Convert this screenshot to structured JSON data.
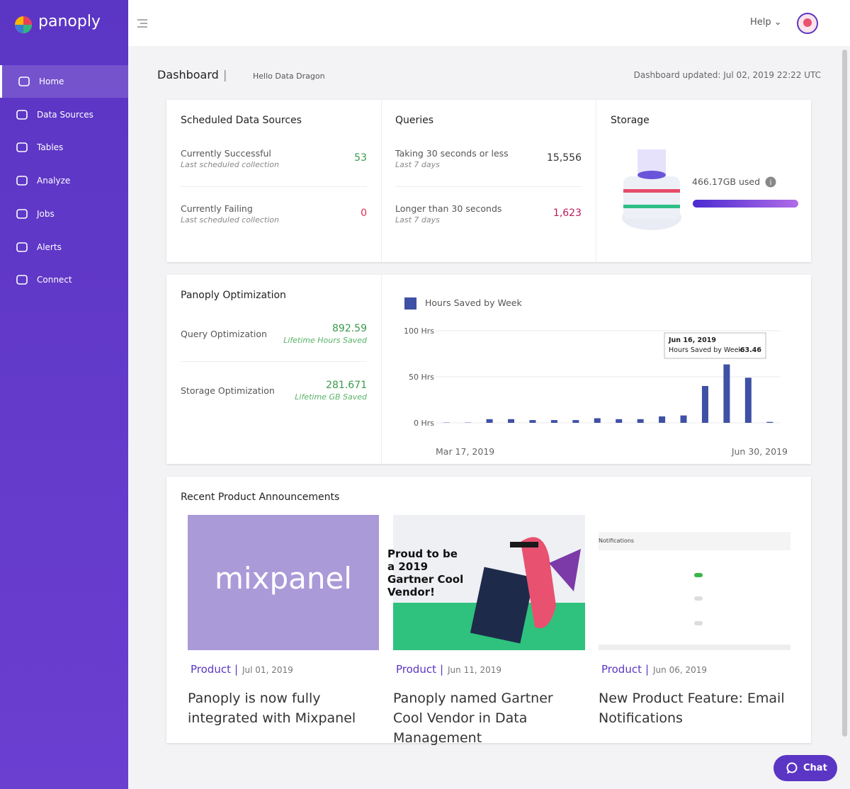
{
  "sidebar": {
    "logo": "panoply",
    "nav": [
      "Home",
      "Data Sources",
      "Tables",
      "Analyze",
      "Jobs",
      "Alerts",
      "Connect"
    ]
  },
  "header": {
    "help": "Help"
  },
  "breadcrumb": {
    "title": "Dashboard",
    "subtitle": "Hello Data Dragon",
    "updated": "Dashboard updated: Jul 02, 2019 22:22 UTC"
  },
  "scheduled": {
    "title": "Scheduled Data Sources",
    "rows": [
      {
        "label": "Currently Successful",
        "sub": "Last scheduled collection",
        "value": 53
      },
      {
        "label": "Currently Failing",
        "sub": "Last scheduled collection",
        "value": 0
      }
    ]
  },
  "queries": {
    "title": "Queries",
    "rows": [
      {
        "label": "Taking 30 seconds or less",
        "sub": "Last 7 days",
        "value": "15,556"
      },
      {
        "label": "Longer than 30 seconds",
        "sub": "Last 7 days",
        "value": "1,623"
      }
    ]
  },
  "storage": {
    "title": "Storage",
    "used": "466.17GB used"
  },
  "optimization": {
    "title": "Panoply Optimization",
    "rows": [
      {
        "label": "Query Optimization",
        "value": 892.59,
        "sub": "Lifetime Hours Saved"
      },
      {
        "label": "Storage Optimization",
        "value": 281.671,
        "sub": "Lifetime GB Saved"
      }
    ]
  },
  "chart_data": {
    "type": "bar",
    "categories": [
      "Mar 17, 2019",
      null,
      null,
      null,
      null,
      null,
      null,
      null,
      null,
      null,
      null,
      null,
      null,
      null,
      null,
      "Jun 30, 2019"
    ],
    "series": [
      {
        "name": "Hours Saved by Week",
        "color": "#3f51a5",
        "values": [
          0.3,
          0.3,
          4,
          4,
          3,
          3,
          3,
          5,
          4,
          4,
          7,
          8,
          40,
          63.46,
          49,
          1
        ]
      }
    ],
    "ylim": [
      0,
      100
    ],
    "yticks": [
      {
        "value": 0,
        "label": "0 Hrs"
      },
      {
        "value": 50,
        "label": "50 Hrs"
      },
      {
        "value": 100,
        "label": "100 Hrs"
      }
    ],
    "grid": true,
    "tooltip": {
      "date": "Jun 16, 2019",
      "label": "Hours Saved by Week:",
      "value": "63.46"
    }
  },
  "announcements": {
    "title": "Recent Product Announcements",
    "items": [
      {
        "tag": "Product",
        "date": "Jul 01, 2019",
        "title": "Panoply is now fully integrated with Mixpanel",
        "image_text": "mixpanel"
      },
      {
        "tag": "Product",
        "date": "Jun 11, 2019",
        "title": "Panoply named Gartner Cool Vendor in Data Management",
        "image_text": "Proud to be a 2019 Gartner Cool Vendor!"
      },
      {
        "tag": "Product",
        "date": "Jun 06, 2019",
        "title": "New Product Feature: Email Notifications",
        "image_text": "Notifications"
      }
    ]
  },
  "chat": "Chat"
}
